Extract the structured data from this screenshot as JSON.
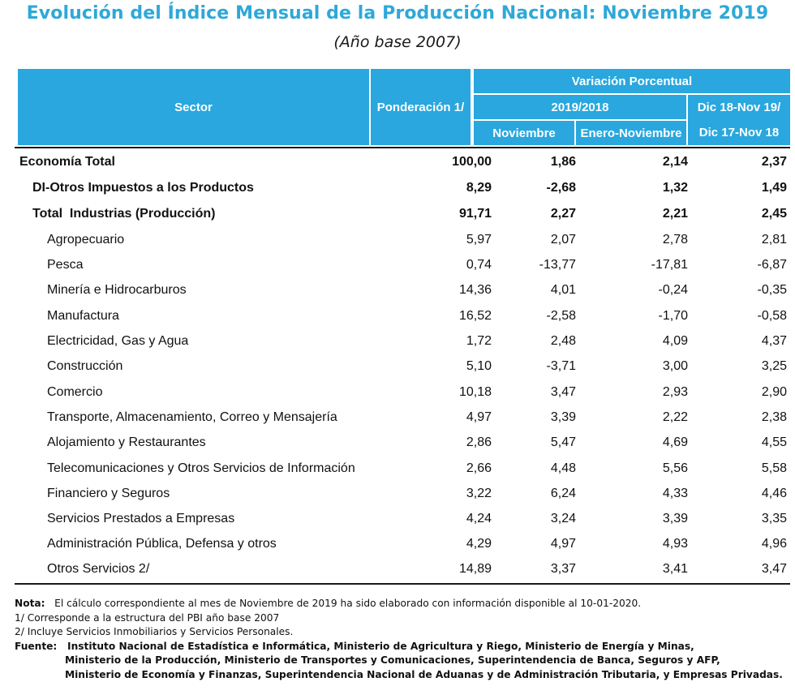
{
  "title": "Evolución del Índice Mensual de la Producción Nacional: Noviembre 2019",
  "subtitle": "(Año base 2007)",
  "header": {
    "sector": "Sector",
    "ponderacion": "Ponderación 1/",
    "variacion": "Variación Porcentual",
    "periodo": "2019/2018",
    "noviembre": "Noviembre",
    "enero_noviembre": "Enero-Noviembre",
    "dic_line1": "Dic 18-Nov 19/",
    "dic_line2": "Dic 17-Nov 18"
  },
  "rows": [
    {
      "sector": "Economía Total",
      "ponderacion": "100,00",
      "noviembre": "1,86",
      "enero_noviembre": "2,14",
      "dic": "2,37"
    },
    {
      "sector": "DI-Otros Impuestos a los Productos",
      "ponderacion": "8,29",
      "noviembre": "-2,68",
      "enero_noviembre": "1,32",
      "dic": "1,49"
    },
    {
      "sector": "Total  Industrias (Producción)",
      "ponderacion": "91,71",
      "noviembre": "2,27",
      "enero_noviembre": "2,21",
      "dic": "2,45"
    },
    {
      "sector": "Agropecuario",
      "ponderacion": "5,97",
      "noviembre": "2,07",
      "enero_noviembre": "2,78",
      "dic": "2,81"
    },
    {
      "sector": "Pesca",
      "ponderacion": "0,74",
      "noviembre": "-13,77",
      "enero_noviembre": "-17,81",
      "dic": "-6,87"
    },
    {
      "sector": "Minería e Hidrocarburos",
      "ponderacion": "14,36",
      "noviembre": "4,01",
      "enero_noviembre": "-0,24",
      "dic": "-0,35"
    },
    {
      "sector": "Manufactura",
      "ponderacion": "16,52",
      "noviembre": "-2,58",
      "enero_noviembre": "-1,70",
      "dic": "-0,58"
    },
    {
      "sector": "Electricidad, Gas y Agua",
      "ponderacion": "1,72",
      "noviembre": "2,48",
      "enero_noviembre": "4,09",
      "dic": "4,37"
    },
    {
      "sector": "Construcción",
      "ponderacion": "5,10",
      "noviembre": "-3,71",
      "enero_noviembre": "3,00",
      "dic": "3,25"
    },
    {
      "sector": "Comercio",
      "ponderacion": "10,18",
      "noviembre": "3,47",
      "enero_noviembre": "2,93",
      "dic": "2,90"
    },
    {
      "sector": "Transporte, Almacenamiento, Correo y Mensajería",
      "ponderacion": "4,97",
      "noviembre": "3,39",
      "enero_noviembre": "2,22",
      "dic": "2,38"
    },
    {
      "sector": "Alojamiento y Restaurantes",
      "ponderacion": "2,86",
      "noviembre": "5,47",
      "enero_noviembre": "4,69",
      "dic": "4,55"
    },
    {
      "sector": "Telecomunicaciones y Otros Servicios de Información",
      "ponderacion": "2,66",
      "noviembre": "4,48",
      "enero_noviembre": "5,56",
      "dic": "5,58"
    },
    {
      "sector": "Financiero y Seguros",
      "ponderacion": "3,22",
      "noviembre": "6,24",
      "enero_noviembre": "4,33",
      "dic": "4,46"
    },
    {
      "sector": "Servicios Prestados a Empresas",
      "ponderacion": "4,24",
      "noviembre": "3,24",
      "enero_noviembre": "3,39",
      "dic": "3,35"
    },
    {
      "sector": "Administración Pública, Defensa y otros",
      "ponderacion": "4,29",
      "noviembre": "4,97",
      "enero_noviembre": "4,93",
      "dic": "4,96"
    },
    {
      "sector": "Otros Servicios 2/",
      "ponderacion": "14,89",
      "noviembre": "3,37",
      "enero_noviembre": "3,41",
      "dic": "3,47"
    }
  ],
  "notes": {
    "nota_label": "Nota:",
    "nota_text": "El cálculo correspondiente al mes de Noviembre de 2019 ha sido elaborado con información disponible al 10-01-2020.",
    "footnote1": "1/ Corresponde a la estructura del PBI año base 2007",
    "footnote2": "2/ Incluye Servicios Inmobiliarios y Servicios Personales.",
    "fuente_label": "Fuente:",
    "fuente_line1": "Instituto Nacional de Estadística e Informática, Ministerio de Agricultura y Riego, Ministerio de Energía y Minas,",
    "fuente_line2": "Ministerio de la Producción, Ministerio de Transportes y Comunicaciones, Superintendencia de Banca, Seguros y AFP,",
    "fuente_line3": "Ministerio de Economía y Finanzas, Superintendencia Nacional de Aduanas y de Administración Tributaria, y Empresas Privadas."
  },
  "colors": {
    "header_bg": "#29a7de",
    "title_color": "#2ea8d8"
  }
}
